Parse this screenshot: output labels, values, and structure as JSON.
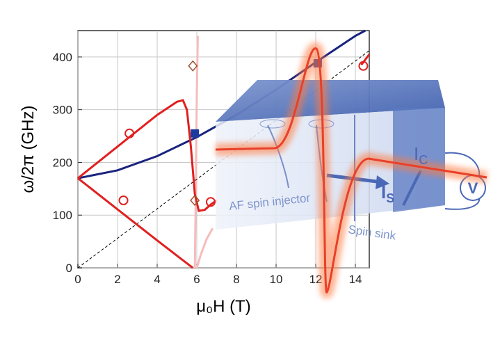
{
  "chart_data": {
    "type": "line",
    "x_label": "μ₀H (T)",
    "y_label": "ω/2π (GHz)",
    "xlim": [
      0,
      14.7
    ],
    "ylim": [
      0,
      450
    ],
    "xticks": [
      0,
      2,
      4,
      6,
      8,
      10,
      12,
      14
    ],
    "yticks": [
      0,
      100,
      200,
      300,
      400
    ],
    "grid": true,
    "series": [
      {
        "color": "#f6bcbc",
        "style": "solid",
        "x": [
          5.9,
          5.95,
          6.0,
          6.05
        ],
        "values": [
          0,
          150,
          330,
          440
        ]
      },
      {
        "color": "#f6bcbc",
        "style": "solid",
        "x": [
          6.0,
          6.2,
          6.5,
          6.8
        ],
        "values": [
          0,
          25,
          55,
          75
        ]
      },
      {
        "color": "#000000",
        "style": "dashed",
        "x": [
          0,
          14.7
        ],
        "values": [
          0,
          412
        ]
      },
      {
        "color": "#1a237e",
        "style": "solid",
        "x": [
          0,
          2,
          4,
          6,
          8,
          10,
          12,
          14,
          14.5
        ],
        "values": [
          170,
          185,
          212,
          248,
          290,
          338,
          390,
          440,
          450
        ]
      },
      {
        "color": "#e02020",
        "style": "solid",
        "x": [
          0,
          2,
          4,
          5.8
        ],
        "values": [
          170,
          111,
          52,
          0
        ]
      },
      {
        "color": "#e02020",
        "style": "solid",
        "x": [
          0,
          1,
          2,
          3,
          4,
          5,
          5.3,
          5.5,
          5.7,
          5.9,
          6.1,
          6.4,
          6.7,
          7
        ],
        "values": [
          170,
          200,
          230,
          260,
          290,
          315,
          318,
          300,
          230,
          140,
          108,
          110,
          120,
          128
        ]
      },
      {
        "color": "#e02020",
        "style": "solid",
        "x": [
          14.3,
          14.7
        ],
        "values": [
          385,
          405
        ]
      },
      {
        "color": "#e02020",
        "marker": "circle",
        "x": [
          2.6,
          2.3,
          6.7,
          14.4
        ],
        "values": [
          255,
          128,
          125,
          383
        ]
      },
      {
        "color": "#a0522d",
        "marker": "diamond",
        "x": [
          5.8,
          5.9
        ],
        "values": [
          383,
          128
        ]
      },
      {
        "color": "#1c3a9e",
        "marker": "square",
        "x": [
          5.9,
          12.1
        ],
        "values": [
          255,
          388
        ]
      }
    ]
  },
  "illustration": {
    "injector": "AF spin injector",
    "sink": "Spin sink",
    "spin_current": {
      "main": "I",
      "sub": "S"
    },
    "charge_current": {
      "main": "I",
      "sub": "C"
    },
    "voltmeter": "V"
  }
}
